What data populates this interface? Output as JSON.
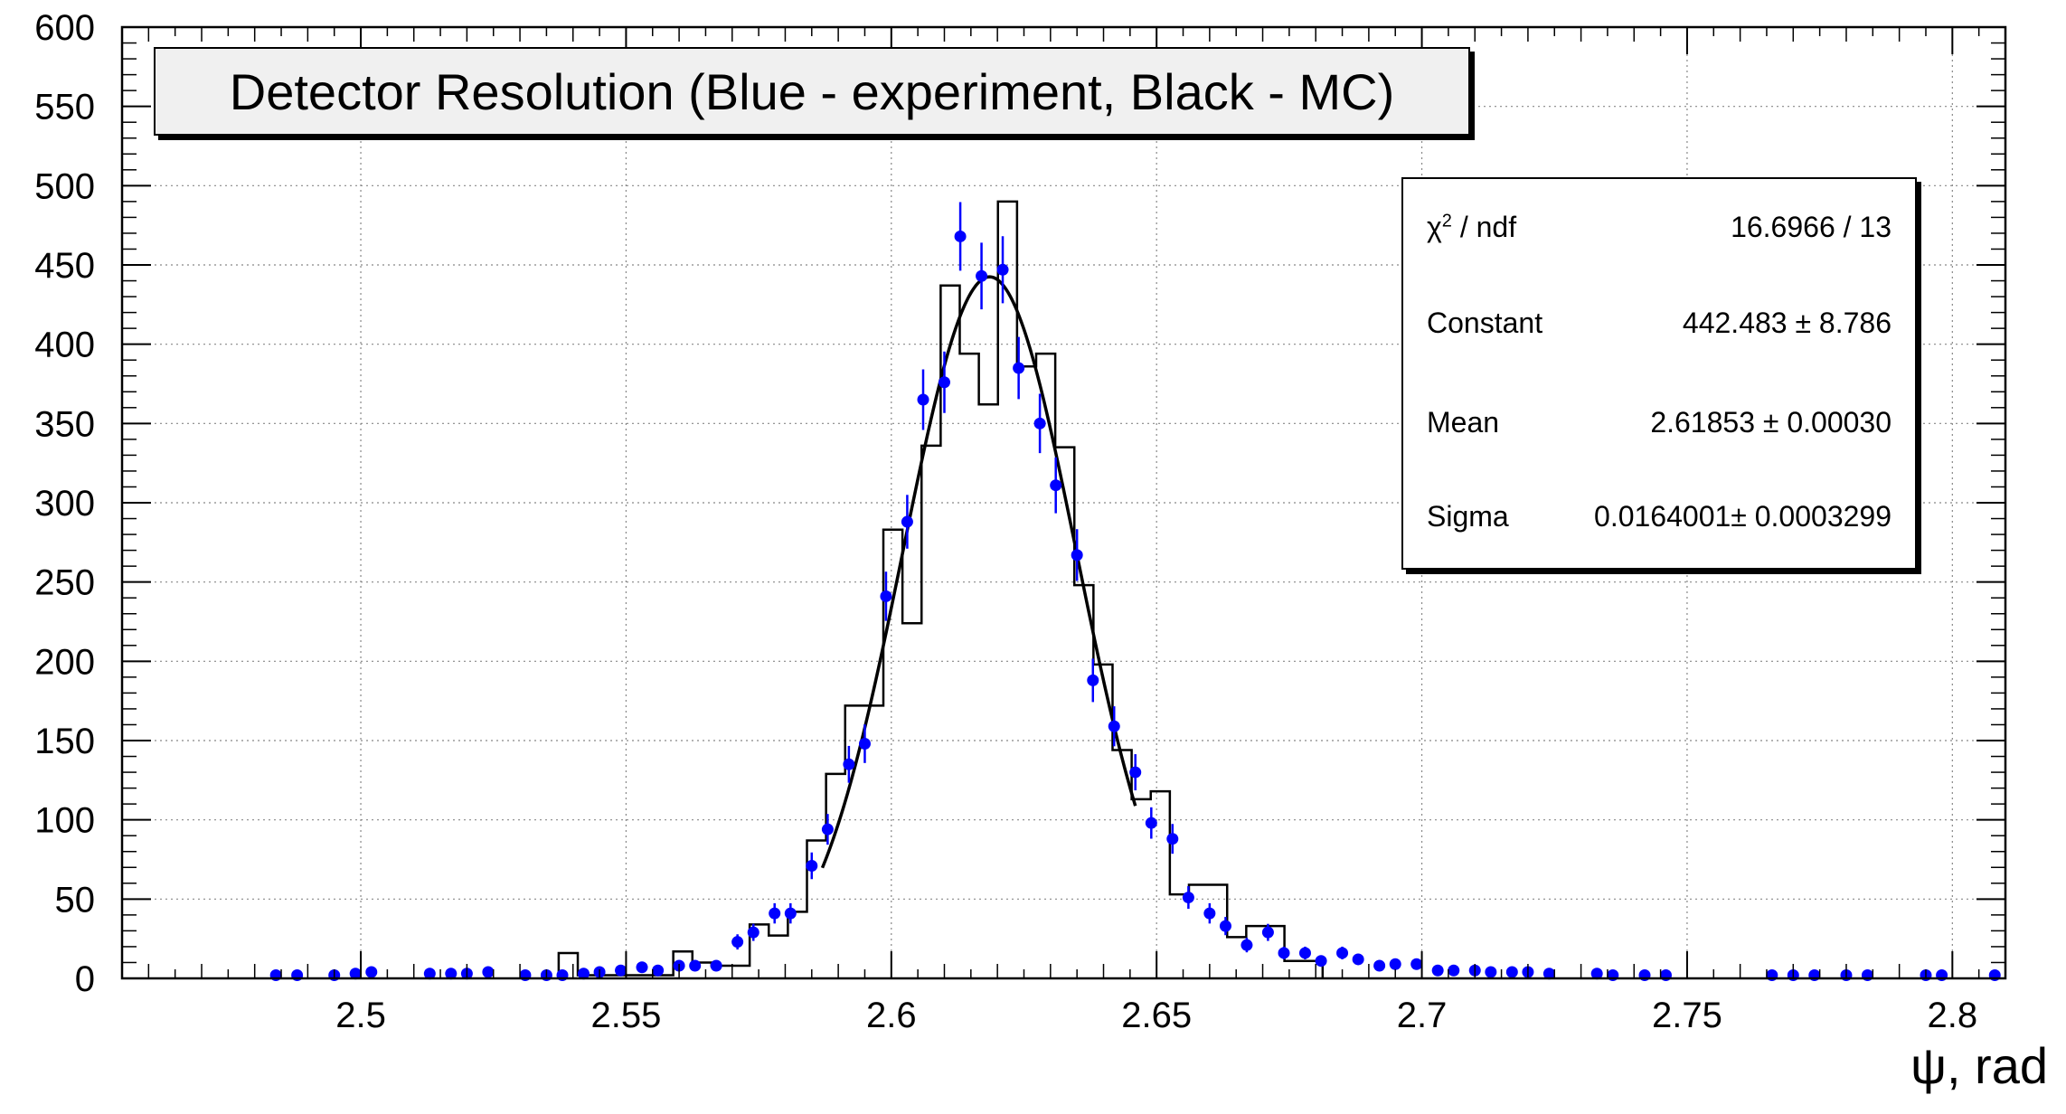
{
  "chart_data": {
    "type": "scatter",
    "title": "Detector Resolution (Blue - experiment, Black - MC)",
    "xlabel": "ψ, rad",
    "ylabel": "",
    "xlim": [
      2.455,
      2.81
    ],
    "ylim": [
      0,
      600
    ],
    "grid": true,
    "x_ticks": [
      "2.5",
      "2.55",
      "2.6",
      "2.65",
      "2.7",
      "2.75",
      "2.8"
    ],
    "x_tick_values": [
      2.5,
      2.55,
      2.6,
      2.65,
      2.7,
      2.75,
      2.8
    ],
    "y_ticks": [
      "0",
      "50",
      "100",
      "150",
      "200",
      "250",
      "300",
      "350",
      "400",
      "450",
      "500",
      "550",
      "600"
    ],
    "y_tick_values": [
      0,
      50,
      100,
      150,
      200,
      250,
      300,
      350,
      400,
      450,
      500,
      550,
      600
    ],
    "colors": {
      "experiment": "#0000ff",
      "mc": "#000000",
      "fit": "#000000"
    },
    "experiment": {
      "x": [
        2.484,
        2.488,
        2.495,
        2.499,
        2.502,
        2.513,
        2.517,
        2.52,
        2.524,
        2.531,
        2.535,
        2.538,
        2.542,
        2.545,
        2.549,
        2.553,
        2.556,
        2.56,
        2.563,
        2.567,
        2.571,
        2.574,
        2.578,
        2.581,
        2.585,
        2.588,
        2.592,
        2.595,
        2.599,
        2.603,
        2.606,
        2.61,
        2.613,
        2.617,
        2.621,
        2.624,
        2.628,
        2.631,
        2.635,
        2.638,
        2.642,
        2.646,
        2.649,
        2.653,
        2.656,
        2.66,
        2.663,
        2.667,
        2.671,
        2.674,
        2.678,
        2.681,
        2.685,
        2.688,
        2.692,
        2.695,
        2.699,
        2.703,
        2.706,
        2.71,
        2.713,
        2.717,
        2.72,
        2.724,
        2.733,
        2.736,
        2.742,
        2.746,
        2.766,
        2.77,
        2.774,
        2.78,
        2.784,
        2.795,
        2.798,
        2.808
      ],
      "y": [
        2,
        2,
        2,
        3,
        4,
        3,
        3,
        3,
        4,
        2,
        2,
        2,
        3,
        4,
        5,
        7,
        5,
        8,
        8,
        8,
        23,
        29,
        41,
        41,
        71,
        94,
        135,
        148,
        241,
        288,
        365,
        376,
        468,
        443,
        447,
        385,
        350,
        311,
        267,
        188,
        159,
        130,
        98,
        88,
        51,
        41,
        33,
        21,
        29,
        16,
        16,
        11,
        16,
        12,
        8,
        9,
        9,
        5,
        5,
        5,
        4,
        4,
        4,
        3,
        3,
        2,
        2,
        2,
        2,
        2,
        2,
        2,
        2,
        2,
        2,
        2
      ]
    },
    "mc_histogram": {
      "bin_edges": [
        2.5373,
        2.5409,
        2.5445,
        2.5481,
        2.5517,
        2.5553,
        2.5589,
        2.5625,
        2.5661,
        2.5697,
        2.5733,
        2.5769,
        2.5805,
        2.5841,
        2.5877,
        2.5913,
        2.5949,
        2.5985,
        2.6021,
        2.6057,
        2.6093,
        2.6129,
        2.6165,
        2.6201,
        2.6237,
        2.6273,
        2.6309,
        2.6345,
        2.6381,
        2.6417,
        2.6453,
        2.6489,
        2.6525,
        2.6561,
        2.6597,
        2.6633,
        2.6669,
        2.6705,
        2.6741,
        2.6777,
        2.6813
      ],
      "counts": [
        16,
        2,
        2,
        2,
        2,
        2,
        17,
        10,
        8,
        8,
        34,
        27,
        42,
        87,
        129,
        172,
        172,
        283,
        224,
        336,
        437,
        394,
        362,
        490,
        386,
        394,
        335,
        248,
        198,
        144,
        113,
        118,
        53,
        59,
        59,
        26,
        33,
        33,
        11,
        11
      ]
    },
    "fit": {
      "function": "gaus",
      "constant": 442.483,
      "mean": 2.61853,
      "sigma": 0.0164001,
      "range": [
        2.587,
        2.646
      ]
    }
  },
  "legend": {
    "title": "Detector Resolution (Blue - experiment, Black - MC)"
  },
  "stats": {
    "chi2_label": "χ",
    "chi2_sup": "2",
    "chi2_suffix": " / ndf",
    "chi2_value": "16.6966 / 13",
    "constant_label": "Constant",
    "constant_value": "442.483 ± 8.786",
    "mean_label": "Mean",
    "mean_value": "2.61853 ± 0.00030",
    "sigma_label": "Sigma",
    "sigma_value": "0.0164001± 0.0003299"
  }
}
